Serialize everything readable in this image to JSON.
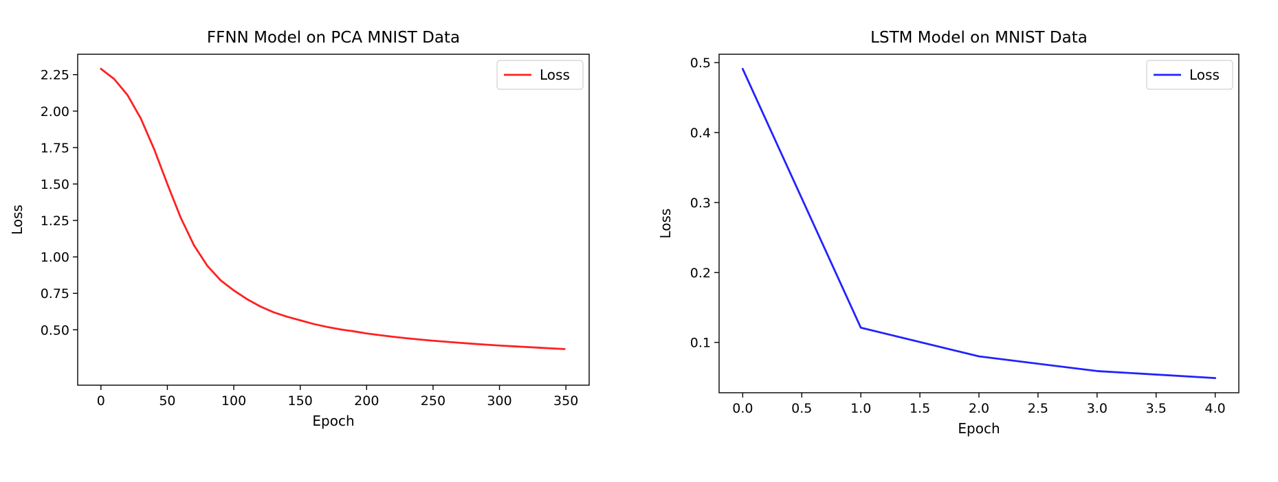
{
  "colors": {
    "loss_red": "#ff2020",
    "loss_blue": "#2222ff"
  },
  "chart_data": [
    {
      "type": "line",
      "title": "FFNN Model on PCA MNIST Data",
      "xlabel": "Epoch",
      "ylabel": "Loss",
      "xlim": [
        -17.5,
        367.5
      ],
      "ylim": [
        0.12,
        2.39
      ],
      "xticks": [
        0,
        50,
        100,
        150,
        200,
        250,
        300,
        350
      ],
      "xtick_labels": [
        "0",
        "50",
        "100",
        "150",
        "200",
        "250",
        "300",
        "350"
      ],
      "yticks": [
        0.5,
        0.75,
        1.0,
        1.25,
        1.5,
        1.75,
        2.0,
        2.25
      ],
      "ytick_labels": [
        "0.50",
        "0.75",
        "1.00",
        "1.25",
        "1.50",
        "1.75",
        "2.00",
        "2.25"
      ],
      "grid": false,
      "legend": "top-right",
      "series": [
        {
          "name": "Loss",
          "color": "#ff2020",
          "x": [
            0,
            10,
            20,
            30,
            40,
            50,
            60,
            70,
            80,
            90,
            100,
            110,
            120,
            130,
            140,
            150,
            160,
            170,
            180,
            190,
            200,
            210,
            220,
            230,
            240,
            250,
            260,
            270,
            280,
            290,
            300,
            310,
            320,
            330,
            340,
            349
          ],
          "y": [
            2.29,
            2.22,
            2.11,
            1.95,
            1.74,
            1.5,
            1.27,
            1.08,
            0.94,
            0.84,
            0.77,
            0.71,
            0.66,
            0.62,
            0.59,
            0.565,
            0.54,
            0.52,
            0.503,
            0.49,
            0.475,
            0.463,
            0.452,
            0.442,
            0.433,
            0.425,
            0.418,
            0.411,
            0.404,
            0.398,
            0.392,
            0.387,
            0.382,
            0.377,
            0.372,
            0.368
          ]
        }
      ]
    },
    {
      "type": "line",
      "title": "LSTM Model on MNIST Data",
      "xlabel": "Epoch",
      "ylabel": "Loss",
      "xlim": [
        -0.2,
        4.2
      ],
      "ylim": [
        0.028,
        0.512
      ],
      "xticks": [
        0,
        0.5,
        1,
        1.5,
        2,
        2.5,
        3,
        3.5,
        4
      ],
      "xtick_labels": [
        "0.0",
        "0.5",
        "1.0",
        "1.5",
        "2.0",
        "2.5",
        "3.0",
        "3.5",
        "4.0"
      ],
      "yticks": [
        0.1,
        0.2,
        0.3,
        0.4,
        0.5
      ],
      "ytick_labels": [
        "0.1",
        "0.2",
        "0.3",
        "0.4",
        "0.5"
      ],
      "grid": false,
      "legend": "top-right",
      "series": [
        {
          "name": "Loss",
          "color": "#2222ff",
          "x": [
            0,
            1,
            2,
            3,
            4
          ],
          "y": [
            0.491,
            0.121,
            0.08,
            0.059,
            0.049
          ]
        }
      ]
    }
  ]
}
